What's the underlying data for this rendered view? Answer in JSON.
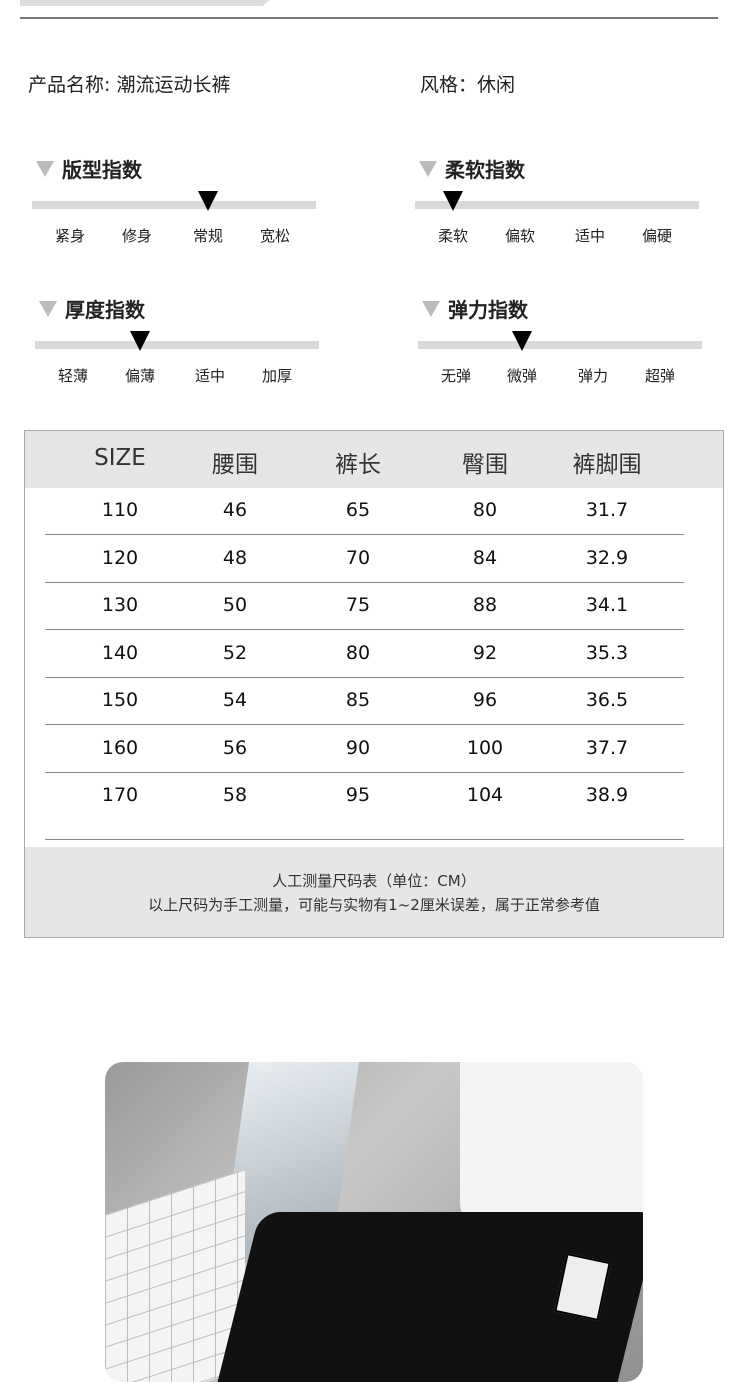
{
  "product": {
    "name_label": "产品名称: 潮流运动长裤",
    "style_label": "风格：休闲"
  },
  "indices": [
    {
      "title": "版型指数",
      "options": [
        "紧身",
        "修身",
        "常规",
        "宽松"
      ],
      "selected_index": 2
    },
    {
      "title": "柔软指数",
      "options": [
        "柔软",
        "偏软",
        "适中",
        "偏硬"
      ],
      "selected_index": 0
    },
    {
      "title": "厚度指数",
      "options": [
        "轻薄",
        "偏薄",
        "适中",
        "加厚"
      ],
      "selected_index": 1
    },
    {
      "title": "弹力指数",
      "options": [
        "无弹",
        "微弹",
        "弹力",
        "超弹"
      ],
      "selected_index": 1
    }
  ],
  "size_table": {
    "headers": [
      "SIZE",
      "腰围",
      "裤长",
      "臀围",
      "裤脚围"
    ],
    "rows": [
      [
        "110",
        "46",
        "65",
        "80",
        "31.7"
      ],
      [
        "120",
        "48",
        "70",
        "84",
        "32.9"
      ],
      [
        "130",
        "50",
        "75",
        "88",
        "34.1"
      ],
      [
        "140",
        "52",
        "80",
        "92",
        "35.3"
      ],
      [
        "150",
        "54",
        "85",
        "96",
        "36.5"
      ],
      [
        "160",
        "56",
        "90",
        "100",
        "37.7"
      ],
      [
        "170",
        "58",
        "95",
        "104",
        "38.9"
      ]
    ],
    "note_title": "人工测量尺码表（单位：CM）",
    "note_text": "以上尺码为手工测量，可能与实物有1~2厘米误差，属于正常参考值"
  }
}
